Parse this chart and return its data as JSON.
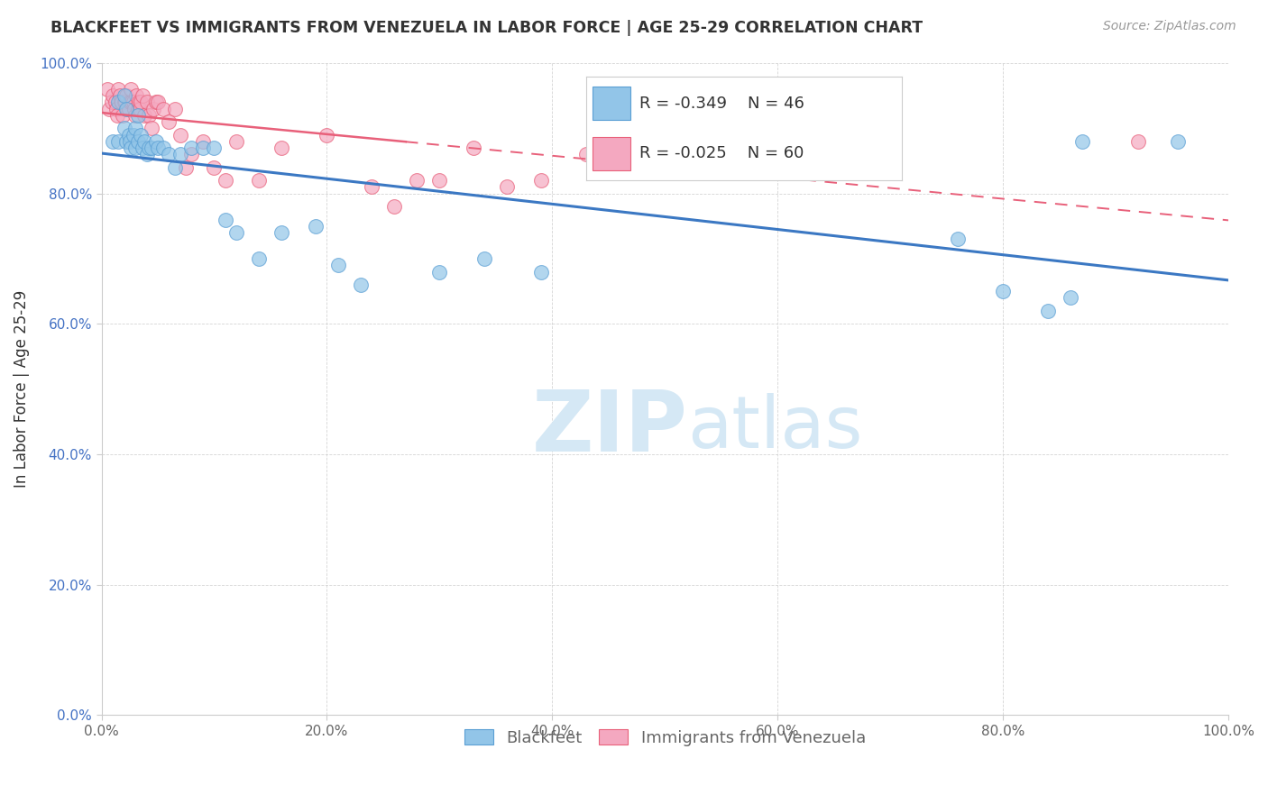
{
  "title": "BLACKFEET VS IMMIGRANTS FROM VENEZUELA IN LABOR FORCE | AGE 25-29 CORRELATION CHART",
  "source": "Source: ZipAtlas.com",
  "ylabel": "In Labor Force | Age 25-29",
  "xlim": [
    0.0,
    1.0
  ],
  "ylim": [
    0.0,
    1.0
  ],
  "xticks": [
    0.0,
    0.2,
    0.4,
    0.6,
    0.8,
    1.0
  ],
  "yticks": [
    0.0,
    0.2,
    0.4,
    0.6,
    0.8,
    1.0
  ],
  "xticklabels": [
    "0.0%",
    "20.0%",
    "40.0%",
    "60.0%",
    "80.0%",
    "100.0%"
  ],
  "yticklabels": [
    "0.0%",
    "20.0%",
    "40.0%",
    "60.0%",
    "80.0%",
    "100.0%"
  ],
  "blue_label": "Blackfeet",
  "pink_label": "Immigrants from Venezuela",
  "blue_R": "-0.349",
  "blue_N": "46",
  "pink_R": "-0.025",
  "pink_N": "60",
  "blue_color": "#92c5e8",
  "pink_color": "#f4a8c0",
  "blue_edge_color": "#5a9fd4",
  "pink_edge_color": "#e8607a",
  "blue_line_color": "#3b78c3",
  "pink_line_color": "#e8607a",
  "watermark_color": "#d5e8f5",
  "blue_points_x": [
    0.01,
    0.015,
    0.015,
    0.02,
    0.02,
    0.022,
    0.022,
    0.024,
    0.025,
    0.026,
    0.028,
    0.03,
    0.03,
    0.032,
    0.032,
    0.035,
    0.036,
    0.038,
    0.04,
    0.042,
    0.044,
    0.048,
    0.05,
    0.055,
    0.06,
    0.065,
    0.07,
    0.08,
    0.09,
    0.1,
    0.11,
    0.12,
    0.14,
    0.16,
    0.19,
    0.21,
    0.23,
    0.3,
    0.34,
    0.39,
    0.76,
    0.8,
    0.84,
    0.86,
    0.87,
    0.955
  ],
  "blue_points_y": [
    0.88,
    0.94,
    0.88,
    0.95,
    0.9,
    0.93,
    0.88,
    0.89,
    0.88,
    0.87,
    0.89,
    0.9,
    0.87,
    0.92,
    0.88,
    0.89,
    0.87,
    0.88,
    0.86,
    0.87,
    0.87,
    0.88,
    0.87,
    0.87,
    0.86,
    0.84,
    0.86,
    0.87,
    0.87,
    0.87,
    0.76,
    0.74,
    0.7,
    0.74,
    0.75,
    0.69,
    0.66,
    0.68,
    0.7,
    0.68,
    0.73,
    0.65,
    0.62,
    0.64,
    0.88,
    0.88
  ],
  "pink_points_x": [
    0.005,
    0.007,
    0.009,
    0.01,
    0.012,
    0.013,
    0.014,
    0.015,
    0.016,
    0.017,
    0.018,
    0.019,
    0.02,
    0.021,
    0.022,
    0.023,
    0.024,
    0.025,
    0.026,
    0.027,
    0.028,
    0.029,
    0.03,
    0.031,
    0.032,
    0.033,
    0.034,
    0.035,
    0.036,
    0.038,
    0.04,
    0.042,
    0.044,
    0.046,
    0.048,
    0.05,
    0.055,
    0.06,
    0.065,
    0.07,
    0.075,
    0.08,
    0.09,
    0.1,
    0.11,
    0.12,
    0.14,
    0.16,
    0.2,
    0.24,
    0.26,
    0.28,
    0.3,
    0.33,
    0.36,
    0.39,
    0.43,
    0.48,
    0.54,
    0.92
  ],
  "pink_points_y": [
    0.96,
    0.93,
    0.94,
    0.95,
    0.94,
    0.93,
    0.92,
    0.96,
    0.95,
    0.94,
    0.94,
    0.92,
    0.94,
    0.94,
    0.95,
    0.93,
    0.93,
    0.94,
    0.96,
    0.94,
    0.94,
    0.93,
    0.92,
    0.95,
    0.93,
    0.94,
    0.93,
    0.94,
    0.95,
    0.92,
    0.94,
    0.92,
    0.9,
    0.93,
    0.94,
    0.94,
    0.93,
    0.91,
    0.93,
    0.89,
    0.84,
    0.86,
    0.88,
    0.84,
    0.82,
    0.88,
    0.82,
    0.87,
    0.89,
    0.81,
    0.78,
    0.82,
    0.82,
    0.87,
    0.81,
    0.82,
    0.86,
    0.88,
    0.88,
    0.88
  ],
  "background_color": "#ffffff",
  "grid_color": "#d0d0d0",
  "title_color": "#333333",
  "axis_tick_color": "#666666",
  "yaxis_tick_color": "#4472c4"
}
